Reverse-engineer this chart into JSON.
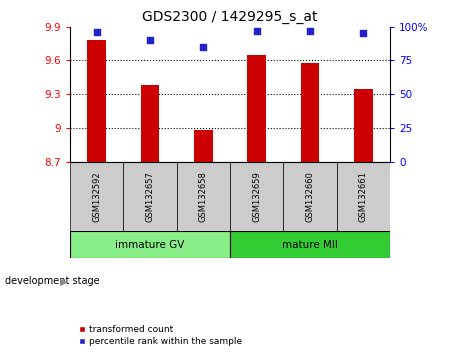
{
  "title": "GDS2300 / 1429295_s_at",
  "samples": [
    "GSM132592",
    "GSM132657",
    "GSM132658",
    "GSM132659",
    "GSM132660",
    "GSM132661"
  ],
  "bar_values": [
    9.78,
    9.38,
    8.98,
    9.65,
    9.58,
    9.35
  ],
  "percentile_values": [
    96,
    90,
    85,
    97,
    97,
    95
  ],
  "ylim_left": [
    8.7,
    9.9
  ],
  "ylim_right": [
    0,
    100
  ],
  "yticks_left": [
    8.7,
    9.0,
    9.3,
    9.6,
    9.9
  ],
  "ytick_labels_left": [
    "8.7",
    "9",
    "9.3",
    "9.6",
    "9.9"
  ],
  "yticks_right": [
    0,
    25,
    50,
    75,
    100
  ],
  "ytick_labels_right": [
    "0",
    "25",
    "50",
    "75",
    "100%"
  ],
  "bar_color": "#cc0000",
  "dot_color": "#2222cc",
  "bar_base": 8.7,
  "bar_width": 0.35,
  "groups": [
    {
      "label": "immature GV",
      "start": 0,
      "end": 3,
      "color": "#88ee88"
    },
    {
      "label": "mature MII",
      "start": 3,
      "end": 6,
      "color": "#33cc33"
    }
  ],
  "group_label_prefix": "development stage",
  "legend_bar_label": "transformed count",
  "legend_dot_label": "percentile rank within the sample",
  "sample_bg_color": "#cccccc",
  "plot_bg_color": "#ffffff"
}
